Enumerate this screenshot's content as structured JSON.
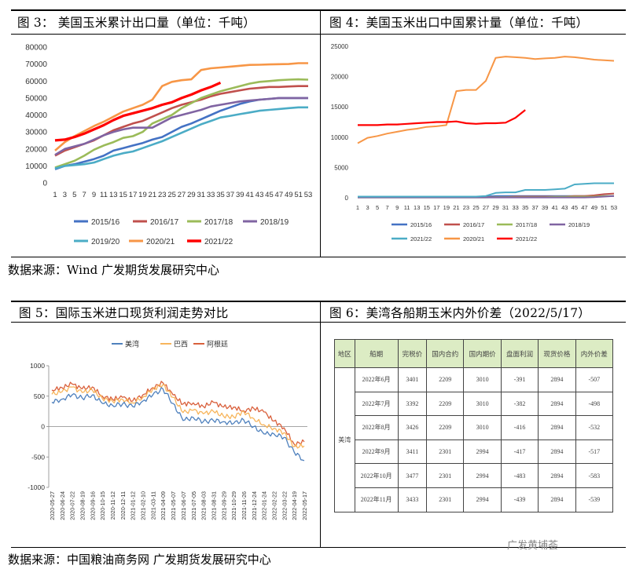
{
  "fig3": {
    "title": "图 3： 美国玉米累计出口量（单位：千吨）",
    "chart_data": {
      "type": "line",
      "x": [
        1,
        3,
        5,
        7,
        9,
        11,
        13,
        15,
        17,
        19,
        21,
        23,
        25,
        27,
        29,
        31,
        33,
        35,
        37,
        39,
        41,
        43,
        45,
        47,
        49,
        51,
        53
      ],
      "ylim": [
        0,
        80000
      ],
      "yticks": [
        "0",
        "10000",
        "20000",
        "30000",
        "40000",
        "50000",
        "60000",
        "70000",
        "80000"
      ],
      "series": [
        {
          "name": "2015/16",
          "color": "#4472c4",
          "values": [
            8000,
            10000,
            11000,
            12500,
            14000,
            16000,
            19000,
            20500,
            22000,
            23500,
            25500,
            27000,
            30000,
            33000,
            35000,
            37500,
            40000,
            42500,
            44500,
            46500,
            48000,
            49000,
            49500,
            50000,
            50000,
            50000,
            50000
          ]
        },
        {
          "name": "2016/17",
          "color": "#c0504d",
          "values": [
            16000,
            19000,
            21000,
            23000,
            25000,
            28000,
            31000,
            33000,
            35000,
            36500,
            39000,
            41500,
            44000,
            46000,
            47500,
            49000,
            51000,
            52500,
            53500,
            54500,
            55500,
            56000,
            56500,
            56500,
            56800,
            57000,
            57000
          ]
        },
        {
          "name": "2017/18",
          "color": "#9bbb59",
          "values": [
            9000,
            11000,
            13000,
            16000,
            19500,
            22000,
            24000,
            26500,
            27500,
            30000,
            35000,
            37500,
            40000,
            44000,
            47000,
            50000,
            52000,
            54000,
            55500,
            57000,
            58500,
            59500,
            60000,
            60500,
            60800,
            61000,
            60800
          ]
        },
        {
          "name": "2018/19",
          "color": "#8064a2",
          "values": [
            16500,
            20000,
            21500,
            23000,
            25500,
            28000,
            30000,
            31500,
            32500,
            32500,
            32500,
            35500,
            38500,
            40000,
            41500,
            43000,
            45000,
            46000,
            47000,
            48000,
            48500,
            49000,
            49500,
            50000,
            50000,
            50000,
            50000
          ]
        },
        {
          "name": "2019/20",
          "color": "#4bacc6",
          "values": [
            8500,
            10000,
            10500,
            11000,
            12000,
            14000,
            16000,
            17500,
            18500,
            20500,
            22500,
            24500,
            27000,
            29500,
            32000,
            34500,
            36500,
            38500,
            39500,
            40500,
            41500,
            42500,
            43000,
            43500,
            44000,
            44500,
            44500
          ]
        },
        {
          "name": "2020/21",
          "color": "#f79646",
          "values": [
            19000,
            24000,
            27500,
            30500,
            33500,
            36000,
            39000,
            42000,
            44000,
            46000,
            49000,
            57000,
            59500,
            60500,
            61000,
            66500,
            67500,
            68000,
            68500,
            69000,
            69500,
            69600,
            69800,
            69900,
            70000,
            70500,
            70500
          ]
        },
        {
          "name": "2021/22",
          "color": "#ff0000",
          "values": [
            25000,
            25500,
            27000,
            29000,
            31500,
            34000,
            37000,
            39500,
            41000,
            42500,
            44000,
            46000,
            47500,
            50000,
            52000,
            54500,
            56500,
            59000,
            null,
            null,
            null,
            null,
            null,
            null,
            null,
            null,
            null
          ]
        }
      ]
    }
  },
  "fig4": {
    "title": "图 4：美国玉米出口中国累计量（单位：千吨）",
    "chart_data": {
      "type": "line",
      "x": [
        1,
        3,
        5,
        7,
        9,
        11,
        13,
        15,
        17,
        19,
        21,
        23,
        25,
        27,
        29,
        31,
        33,
        35,
        37,
        39,
        41,
        43,
        45,
        47,
        49,
        51,
        53
      ],
      "ylim": [
        0,
        25000
      ],
      "yticks": [
        "0",
        "5000",
        "10000",
        "15000",
        "20000",
        "25000"
      ],
      "series": [
        {
          "name": "2015/16",
          "color": "#4472c4",
          "values": [
            200,
            200,
            200,
            200,
            200,
            200,
            200,
            200,
            200,
            200,
            200,
            200,
            200,
            200,
            300,
            300,
            300,
            300,
            300,
            300,
            300,
            300,
            300,
            300,
            300,
            300,
            300
          ]
        },
        {
          "name": "2016/17",
          "color": "#c0504d",
          "values": [
            100,
            100,
            100,
            100,
            100,
            100,
            100,
            100,
            100,
            100,
            100,
            100,
            100,
            100,
            100,
            100,
            200,
            200,
            200,
            200,
            200,
            200,
            300,
            300,
            400,
            600,
            700
          ]
        },
        {
          "name": "2017/18",
          "color": "#9bbb59",
          "values": [
            50,
            50,
            50,
            50,
            50,
            50,
            50,
            50,
            50,
            50,
            50,
            50,
            50,
            50,
            100,
            100,
            100,
            100,
            100,
            100,
            150,
            150,
            200,
            200,
            200,
            300,
            300
          ]
        },
        {
          "name": "2018/19",
          "color": "#8064a2",
          "values": [
            50,
            50,
            50,
            50,
            50,
            50,
            50,
            50,
            50,
            50,
            50,
            50,
            50,
            50,
            50,
            50,
            50,
            50,
            50,
            50,
            50,
            50,
            50,
            50,
            100,
            200,
            300
          ]
        },
        {
          "name": "2021/22",
          "color": "#4bacc6",
          "values": [
            200,
            200,
            200,
            200,
            200,
            200,
            200,
            200,
            200,
            200,
            200,
            200,
            200,
            300,
            800,
            900,
            900,
            1300,
            1300,
            1300,
            1400,
            1500,
            2200,
            2300,
            2400,
            2400,
            2400
          ]
        },
        {
          "name": "2020/21",
          "color": "#f79646",
          "values": [
            9000,
            9900,
            10200,
            10600,
            10900,
            11200,
            11400,
            11700,
            11800,
            12000,
            17600,
            17800,
            17800,
            19300,
            23100,
            23300,
            23200,
            23100,
            22900,
            23000,
            23100,
            23300,
            23200,
            23000,
            22800,
            22700,
            22600
          ]
        },
        {
          "name": "2021/22",
          "color": "#ff0000",
          "values": [
            12000,
            12000,
            12000,
            12100,
            12100,
            12200,
            12300,
            12400,
            12500,
            12500,
            12600,
            12300,
            12200,
            12300,
            12300,
            12400,
            13200,
            14500,
            null,
            null,
            null,
            null,
            null,
            null,
            null,
            null,
            null
          ]
        }
      ]
    }
  },
  "source_top": "数据来源：Wind 广发期货发展研究中心",
  "fig5": {
    "title": "图 5：国际玉米进口现货利润走势对比",
    "chart_data": {
      "type": "line",
      "ylim": [
        -1000,
        1000
      ],
      "yticks": [
        "1000",
        "500",
        "0",
        "-500",
        "-1000"
      ],
      "xticks": [
        "2020-05-27",
        "2020-06-24",
        "2020-07-22",
        "2020-08-19",
        "2020-09-16",
        "2020-10-15",
        "2020-11-12",
        "2020-12-11",
        "2021-01-12",
        "2021-02-10",
        "2021-03-11",
        "2021-04-09",
        "2021-05-07",
        "2021-06-07",
        "2021-07-05",
        "2021-08-03",
        "2021-08-31",
        "2021-09-29",
        "2021-10-29",
        "2021-11-26",
        "2021-12-24",
        "2022-01-24",
        "2022-02-22",
        "2022-03-22",
        "2022-04-19",
        "2022-05-17"
      ],
      "series": [
        {
          "name": "美湾",
          "color": "#4f81bd",
          "values": [
            400,
            450,
            520,
            470,
            520,
            380,
            350,
            370,
            330,
            420,
            520,
            620,
            380,
            100,
            150,
            80,
            100,
            80,
            50,
            110,
            0,
            -120,
            -120,
            -180,
            -420,
            -560
          ]
        },
        {
          "name": "巴西",
          "color": "#f7b55c",
          "values": [
            530,
            570,
            650,
            560,
            600,
            460,
            420,
            450,
            390,
            480,
            620,
            690,
            480,
            230,
            270,
            210,
            250,
            170,
            160,
            250,
            130,
            30,
            -30,
            -100,
            -330,
            -320
          ]
        },
        {
          "name": "阿根廷",
          "color": "#d9603c",
          "values": [
            600,
            640,
            700,
            620,
            650,
            500,
            450,
            480,
            420,
            520,
            640,
            720,
            520,
            370,
            390,
            330,
            400,
            320,
            320,
            260,
            300,
            240,
            90,
            -20,
            -290,
            -250
          ]
        }
      ]
    }
  },
  "fig6": {
    "title": "图 6：美湾各船期玉米内外价差（2022/5/17）",
    "table": {
      "headers": [
        "地区",
        "船期",
        "完税价",
        "国内合约",
        "国内期价",
        "盘面利润",
        "现货价格",
        "内外价差"
      ],
      "region": "美湾",
      "rows": [
        [
          "2022年6月",
          "3401",
          "2209",
          "3010",
          "-391",
          "2894",
          "-507"
        ],
        [
          "2022年7月",
          "3392",
          "2209",
          "3010",
          "-382",
          "2894",
          "-498"
        ],
        [
          "2022年8月",
          "3426",
          "2209",
          "3010",
          "-416",
          "2894",
          "-532"
        ],
        [
          "2022年9月",
          "3411",
          "2301",
          "2994",
          "-417",
          "2894",
          "-517"
        ],
        [
          "2022年10月",
          "3477",
          "2301",
          "2994",
          "-483",
          "2894",
          "-583"
        ],
        [
          "2022年11月",
          "3433",
          "2301",
          "2994",
          "-439",
          "2894",
          "-539"
        ]
      ]
    }
  },
  "source_bottom": "数据来源：中国粮油商务网 广发期货发展研究中心",
  "watermark": "广发黄埔荟"
}
